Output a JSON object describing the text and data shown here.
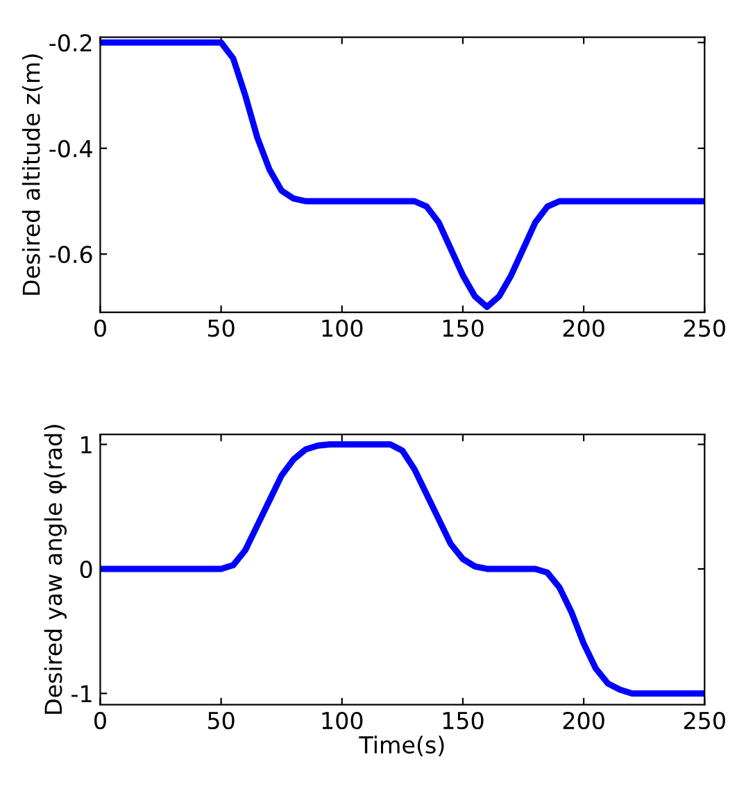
{
  "chart_data": [
    {
      "type": "line",
      "ylabel": "Desired altitude z(m)",
      "series": [
        {
          "color": "#0000ff",
          "x": [
            0,
            50,
            55,
            60,
            65,
            70,
            75,
            80,
            85,
            90,
            130,
            135,
            140,
            145,
            150,
            155,
            160,
            165,
            170,
            175,
            180,
            185,
            190,
            250
          ],
          "values": [
            -0.2,
            -0.2,
            -0.23,
            -0.3,
            -0.38,
            -0.44,
            -0.48,
            -0.495,
            -0.5,
            -0.5,
            -0.5,
            -0.51,
            -0.54,
            -0.59,
            -0.64,
            -0.68,
            -0.7,
            -0.68,
            -0.64,
            -0.59,
            -0.54,
            -0.51,
            -0.5,
            -0.5
          ]
        }
      ],
      "xlim": [
        0,
        250
      ],
      "xticks": [
        0,
        50,
        100,
        150,
        200,
        250
      ],
      "ylim": [
        -0.71,
        -0.19
      ],
      "yticks": [
        -0.6,
        -0.4,
        -0.2
      ],
      "grid": false,
      "legend": false,
      "marker": "none",
      "line_style": "solid"
    },
    {
      "type": "line",
      "xlabel": "Time(s)",
      "ylabel": "Desired yaw angle φ(rad)",
      "series": [
        {
          "color": "#0000ff",
          "x": [
            0,
            50,
            55,
            60,
            65,
            70,
            75,
            80,
            85,
            90,
            95,
            120,
            125,
            130,
            135,
            140,
            145,
            150,
            155,
            160,
            180,
            185,
            190,
            195,
            200,
            205,
            210,
            215,
            220,
            250
          ],
          "values": [
            0,
            0,
            0.03,
            0.15,
            0.35,
            0.55,
            0.75,
            0.88,
            0.96,
            0.99,
            1,
            1,
            0.95,
            0.8,
            0.6,
            0.4,
            0.2,
            0.08,
            0.02,
            0,
            0,
            -0.03,
            -0.15,
            -0.35,
            -0.6,
            -0.8,
            -0.92,
            -0.97,
            -1,
            -1
          ]
        }
      ],
      "xlim": [
        0,
        250
      ],
      "xticks": [
        0,
        50,
        100,
        150,
        200,
        250
      ],
      "ylim": [
        -1.09,
        1.08
      ],
      "yticks": [
        -1,
        0,
        1
      ],
      "grid": false,
      "legend": false,
      "marker": "none",
      "line_style": "solid"
    }
  ]
}
